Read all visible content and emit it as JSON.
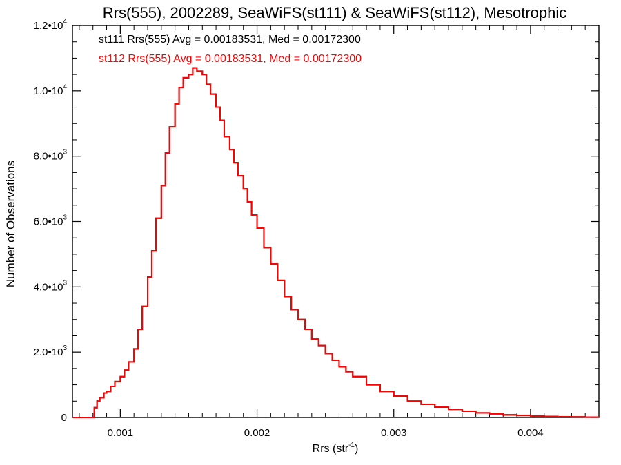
{
  "chart_data": {
    "type": "histogram",
    "title": "Rrs(555), 2002289, SeaWiFS(st111) & SeaWiFS(st112), Mesotrophic",
    "xlabel": "Rrs (str",
    "xlabel_superscript": "-1",
    "xlabel_suffix": ")",
    "ylabel": "Number of Observations",
    "xlim": [
      0.00065,
      0.0045
    ],
    "ylim": [
      0,
      12000
    ],
    "x_ticks": [
      {
        "value": 0.001,
        "label": "0.001"
      },
      {
        "value": 0.002,
        "label": "0.002"
      },
      {
        "value": 0.003,
        "label": "0.003"
      },
      {
        "value": 0.004,
        "label": "0.004"
      }
    ],
    "y_ticks": [
      {
        "value": 0,
        "mantissa": "0",
        "exponent": ""
      },
      {
        "value": 2000,
        "mantissa": "2.0•10",
        "exponent": "3"
      },
      {
        "value": 4000,
        "mantissa": "4.0•10",
        "exponent": "3"
      },
      {
        "value": 6000,
        "mantissa": "6.0•10",
        "exponent": "3"
      },
      {
        "value": 8000,
        "mantissa": "8.0•10",
        "exponent": "3"
      },
      {
        "value": 10000,
        "mantissa": "1.0•10",
        "exponent": "4"
      },
      {
        "value": 12000,
        "mantissa": "1.2•10",
        "exponent": "4"
      }
    ],
    "grid": false,
    "annotations": [
      {
        "text": "st111 Rrs(555) Avg = 0.00183531, Med = 0.00172300",
        "color": "#000000"
      },
      {
        "text": "st112 Rrs(555) Avg = 0.00183531, Med = 0.00172300",
        "color": "#ff0000"
      }
    ],
    "series": [
      {
        "name": "st111",
        "color": "#000000",
        "x": [
          0.00065,
          0.0008,
          0.00081,
          0.00083,
          0.00085,
          0.00088,
          0.0009,
          0.00093,
          0.00096,
          0.001,
          0.00103,
          0.00106,
          0.0011,
          0.00113,
          0.00116,
          0.0012,
          0.00123,
          0.00126,
          0.0013,
          0.00133,
          0.00136,
          0.0014,
          0.00143,
          0.00146,
          0.0015,
          0.00153,
          0.00156,
          0.0016,
          0.00163,
          0.00166,
          0.0017,
          0.00173,
          0.00176,
          0.0018,
          0.00183,
          0.00186,
          0.0019,
          0.00193,
          0.00196,
          0.002,
          0.00205,
          0.0021,
          0.00215,
          0.0022,
          0.00225,
          0.0023,
          0.00235,
          0.0024,
          0.00245,
          0.0025,
          0.00255,
          0.0026,
          0.00265,
          0.0027,
          0.0028,
          0.0029,
          0.003,
          0.0031,
          0.0032,
          0.0033,
          0.0034,
          0.0035,
          0.0036,
          0.0037,
          0.0038,
          0.0039,
          0.004,
          0.0041,
          0.0042,
          0.0043,
          0.0044,
          0.0045
        ],
        "values": [
          0,
          0,
          300,
          500,
          600,
          750,
          800,
          950,
          1100,
          1250,
          1450,
          1700,
          2100,
          2700,
          3400,
          4300,
          5100,
          6100,
          7100,
          8100,
          8900,
          9600,
          10100,
          10400,
          10500,
          10700,
          10600,
          10500,
          10200,
          9900,
          9500,
          9100,
          8600,
          8200,
          7800,
          7400,
          7000,
          6600,
          6200,
          5800,
          5200,
          4700,
          4200,
          3700,
          3300,
          3000,
          2700,
          2400,
          2200,
          1950,
          1750,
          1550,
          1400,
          1250,
          1000,
          800,
          650,
          500,
          400,
          320,
          250,
          190,
          140,
          110,
          80,
          60,
          45,
          30,
          20,
          15,
          10,
          5
        ]
      },
      {
        "name": "st112",
        "color": "#ff0000",
        "x": [
          0.00065,
          0.0008,
          0.00081,
          0.00083,
          0.00085,
          0.00088,
          0.0009,
          0.00093,
          0.00096,
          0.001,
          0.00103,
          0.00106,
          0.0011,
          0.00113,
          0.00116,
          0.0012,
          0.00123,
          0.00126,
          0.0013,
          0.00133,
          0.00136,
          0.0014,
          0.00143,
          0.00146,
          0.0015,
          0.00153,
          0.00156,
          0.0016,
          0.00163,
          0.00166,
          0.0017,
          0.00173,
          0.00176,
          0.0018,
          0.00183,
          0.00186,
          0.0019,
          0.00193,
          0.00196,
          0.002,
          0.00205,
          0.0021,
          0.00215,
          0.0022,
          0.00225,
          0.0023,
          0.00235,
          0.0024,
          0.00245,
          0.0025,
          0.00255,
          0.0026,
          0.00265,
          0.0027,
          0.0028,
          0.0029,
          0.003,
          0.0031,
          0.0032,
          0.0033,
          0.0034,
          0.0035,
          0.0036,
          0.0037,
          0.0038,
          0.0039,
          0.004,
          0.0041,
          0.0042,
          0.0043,
          0.0044,
          0.0045
        ],
        "values": [
          0,
          0,
          300,
          500,
          600,
          750,
          800,
          950,
          1100,
          1250,
          1450,
          1700,
          2100,
          2700,
          3400,
          4300,
          5100,
          6100,
          7100,
          8100,
          8900,
          9600,
          10100,
          10400,
          10500,
          10700,
          10600,
          10500,
          10200,
          9900,
          9500,
          9100,
          8600,
          8200,
          7800,
          7400,
          7000,
          6600,
          6200,
          5800,
          5200,
          4700,
          4200,
          3700,
          3300,
          3000,
          2700,
          2400,
          2200,
          1950,
          1750,
          1550,
          1400,
          1250,
          1000,
          800,
          650,
          500,
          400,
          320,
          250,
          190,
          140,
          110,
          80,
          60,
          45,
          30,
          20,
          15,
          10,
          5
        ]
      }
    ]
  }
}
